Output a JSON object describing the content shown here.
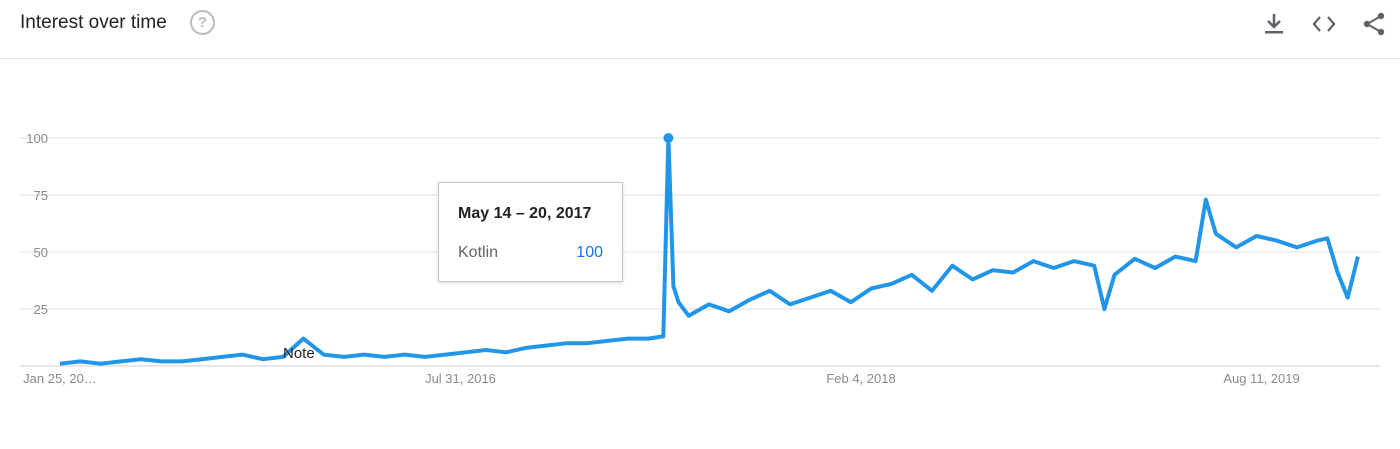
{
  "header": {
    "title": "Interest over time",
    "help_glyph": "?",
    "icons": [
      "download-icon",
      "embed-code-icon",
      "share-icon"
    ]
  },
  "tooltip": {
    "date": "May 14 – 20, 2017",
    "series": "Kotlin",
    "value": "100"
  },
  "note_label": "Note",
  "colors": {
    "line": "#2196e8",
    "grid": "#e0e0e0",
    "axis_text": "#8a8a8a",
    "tooltip_value": "#1a73e8"
  },
  "chart_data": {
    "type": "line",
    "title": "Interest over time",
    "y_ticks": [
      25,
      50,
      75,
      100
    ],
    "ylim": [
      0,
      100
    ],
    "x_tick_labels": [
      "Jan 25, 20…",
      "Jul 31, 2016",
      "Feb 4, 2018",
      "Aug 11, 2019"
    ],
    "grid": true,
    "series": [
      {
        "name": "Kotlin",
        "x": [
          "2015-01-25",
          "2015-02-22",
          "2015-03-22",
          "2015-04-19",
          "2015-05-17",
          "2015-06-14",
          "2015-07-12",
          "2015-08-09",
          "2015-09-06",
          "2015-10-04",
          "2015-11-01",
          "2015-11-29",
          "2015-12-27",
          "2016-01-24",
          "2016-02-21",
          "2016-03-20",
          "2016-04-17",
          "2016-05-15",
          "2016-06-12",
          "2016-07-10",
          "2016-08-07",
          "2016-09-04",
          "2016-10-02",
          "2016-10-30",
          "2016-11-27",
          "2016-12-25",
          "2017-01-22",
          "2017-02-19",
          "2017-03-19",
          "2017-04-16",
          "2017-05-07",
          "2017-05-14",
          "2017-05-21",
          "2017-05-28",
          "2017-06-11",
          "2017-07-09",
          "2017-08-06",
          "2017-09-03",
          "2017-10-01",
          "2017-10-29",
          "2017-11-26",
          "2017-12-24",
          "2018-01-21",
          "2018-02-18",
          "2018-03-18",
          "2018-04-15",
          "2018-05-13",
          "2018-06-10",
          "2018-07-08",
          "2018-08-05",
          "2018-09-02",
          "2018-09-30",
          "2018-10-28",
          "2018-11-25",
          "2018-12-23",
          "2019-01-06",
          "2019-01-20",
          "2019-02-17",
          "2019-03-17",
          "2019-04-14",
          "2019-05-12",
          "2019-05-26",
          "2019-06-09",
          "2019-07-07",
          "2019-08-04",
          "2019-09-01",
          "2019-09-29",
          "2019-10-27",
          "2019-11-10",
          "2019-11-24",
          "2019-12-08",
          "2019-12-22"
        ],
        "values": [
          1,
          2,
          1,
          2,
          3,
          2,
          2,
          3,
          4,
          5,
          3,
          4,
          12,
          5,
          4,
          5,
          4,
          5,
          4,
          5,
          6,
          7,
          6,
          8,
          9,
          10,
          10,
          11,
          12,
          12,
          13,
          100,
          35,
          28,
          22,
          27,
          24,
          29,
          33,
          27,
          30,
          33,
          28,
          34,
          36,
          40,
          33,
          44,
          38,
          42,
          41,
          46,
          43,
          46,
          44,
          25,
          40,
          47,
          43,
          48,
          46,
          73,
          58,
          52,
          57,
          55,
          52,
          55,
          56,
          41,
          30,
          48
        ]
      }
    ]
  }
}
